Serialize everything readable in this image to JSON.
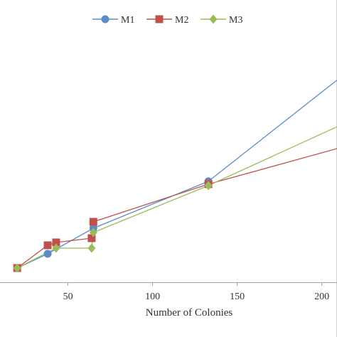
{
  "chart_data": {
    "type": "line",
    "title": "",
    "xlabel": "Number of Colonies",
    "ylabel": "",
    "xlim": [
      20,
      212
    ],
    "ylim": [
      0,
      440
    ],
    "x_ticks": [
      "50",
      "100",
      "150",
      "200"
    ],
    "grid": false,
    "legend_position": "top-center",
    "series": [
      {
        "name": "M1",
        "color": "#5B8CC9",
        "marker": "circle",
        "x": [
          20,
          38,
          65,
          133,
          212
        ],
        "y": [
          0,
          20,
          56,
          122,
          270
        ]
      },
      {
        "name": "M2",
        "color": "#C0504D",
        "marker": "square",
        "x": [
          20,
          38,
          43,
          64,
          65,
          133,
          212
        ],
        "y": [
          0,
          32,
          36,
          42,
          65,
          118,
          170
        ]
      },
      {
        "name": "M3",
        "color": "#9BBB59",
        "marker": "diamond",
        "x": [
          20,
          43,
          64,
          65,
          133,
          212
        ],
        "y": [
          0,
          28,
          28,
          50,
          116,
          202
        ]
      }
    ]
  }
}
